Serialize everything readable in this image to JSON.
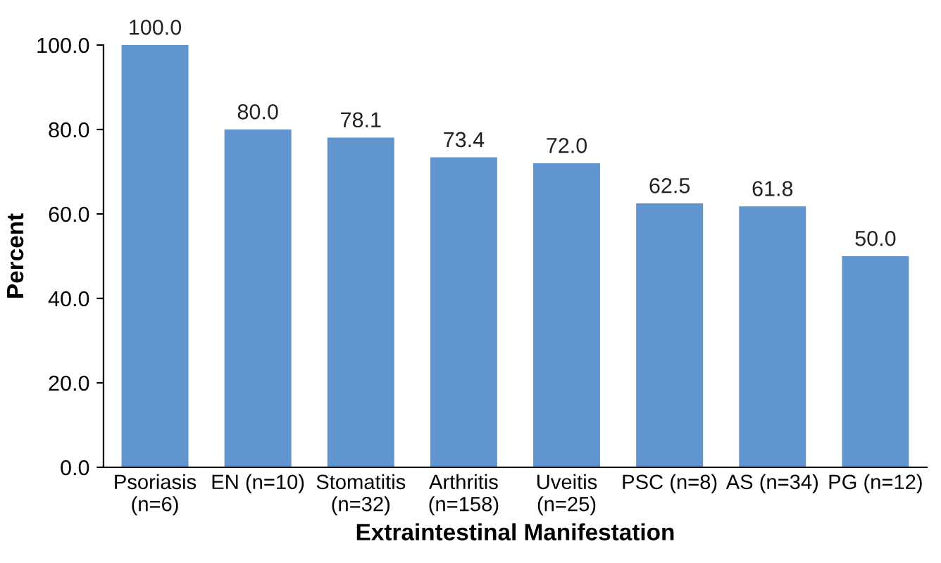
{
  "chart_data": {
    "type": "bar",
    "xlabel": "Extraintestinal Manifestation",
    "ylabel": "Percent",
    "categories": [
      "Psoriasis\n(n=6)",
      "EN (n=10)",
      "Stomatitis\n(n=32)",
      "Arthritis\n(n=158)",
      "Uveitis\n(n=25)",
      "PSC (n=8)",
      "AS (n=34)",
      "PG (n=12)"
    ],
    "values": [
      100.0,
      80.0,
      78.1,
      73.4,
      72.0,
      62.5,
      61.8,
      50.0
    ],
    "value_labels": [
      "100.0",
      "80.0",
      "78.1",
      "73.4",
      "72.0",
      "62.5",
      "61.8",
      "50.0"
    ],
    "color": "#6195cf",
    "ylim": [
      0,
      100
    ],
    "yticks": [
      {
        "value": 0,
        "label": "0.0"
      },
      {
        "value": 20,
        "label": "20.0"
      },
      {
        "value": 40,
        "label": "40.0"
      },
      {
        "value": 60,
        "label": "60.0"
      },
      {
        "value": 80,
        "label": "80.0"
      },
      {
        "value": 100,
        "label": "100.0"
      }
    ],
    "grid": false
  }
}
